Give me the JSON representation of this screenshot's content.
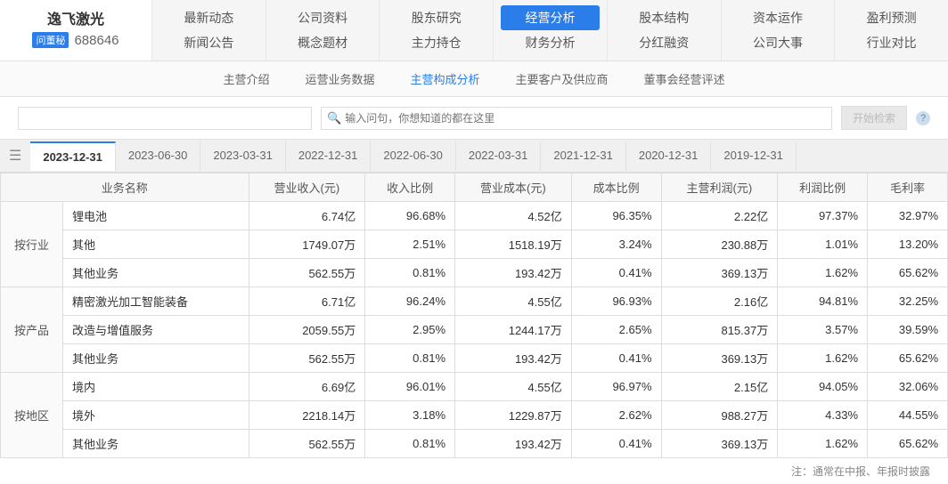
{
  "company": {
    "name": "逸飞激光",
    "badge": "问董秘",
    "code": "688646"
  },
  "topNav": [
    {
      "a": "最新动态",
      "b": "新闻公告"
    },
    {
      "a": "公司资料",
      "b": "概念题材"
    },
    {
      "a": "股东研究",
      "b": "主力持仓"
    },
    {
      "a": "经营分析",
      "b": "财务分析",
      "activeA": true
    },
    {
      "a": "股本结构",
      "b": "分红融资"
    },
    {
      "a": "资本运作",
      "b": "公司大事"
    },
    {
      "a": "盈利预测",
      "b": "行业对比"
    }
  ],
  "subNav": [
    {
      "label": "主营介绍"
    },
    {
      "label": "运营业务数据"
    },
    {
      "label": "主营构成分析",
      "active": true
    },
    {
      "label": "主要客户及供应商"
    },
    {
      "label": "董事会经营评述"
    }
  ],
  "search": {
    "placeholder": "输入问句，你想知道的都在这里",
    "btn": "开始检索"
  },
  "dateTabs": [
    "2023-12-31",
    "2023-06-30",
    "2023-03-31",
    "2022-12-31",
    "2022-06-30",
    "2022-03-31",
    "2021-12-31",
    "2020-12-31",
    "2019-12-31"
  ],
  "activeDateIdx": 0,
  "table": {
    "headers": [
      "业务名称",
      "营业收入(元)",
      "收入比例",
      "营业成本(元)",
      "成本比例",
      "主营利润(元)",
      "利润比例",
      "毛利率"
    ],
    "groups": [
      {
        "cat": "按行业",
        "rows": [
          {
            "name": "锂电池",
            "rev": "6.74亿",
            "revPct": "96.68%",
            "cost": "4.52亿",
            "costPct": "96.35%",
            "profit": "2.22亿",
            "profitPct": "97.37%",
            "margin": "32.97%"
          },
          {
            "name": "其他",
            "rev": "1749.07万",
            "revPct": "2.51%",
            "cost": "1518.19万",
            "costPct": "3.24%",
            "profit": "230.88万",
            "profitPct": "1.01%",
            "margin": "13.20%"
          },
          {
            "name": "其他业务",
            "rev": "562.55万",
            "revPct": "0.81%",
            "cost": "193.42万",
            "costPct": "0.41%",
            "profit": "369.13万",
            "profitPct": "1.62%",
            "margin": "65.62%"
          }
        ]
      },
      {
        "cat": "按产品",
        "rows": [
          {
            "name": "精密激光加工智能装备",
            "rev": "6.71亿",
            "revPct": "96.24%",
            "cost": "4.55亿",
            "costPct": "96.93%",
            "profit": "2.16亿",
            "profitPct": "94.81%",
            "margin": "32.25%"
          },
          {
            "name": "改造与增值服务",
            "rev": "2059.55万",
            "revPct": "2.95%",
            "cost": "1244.17万",
            "costPct": "2.65%",
            "profit": "815.37万",
            "profitPct": "3.57%",
            "margin": "39.59%"
          },
          {
            "name": "其他业务",
            "rev": "562.55万",
            "revPct": "0.81%",
            "cost": "193.42万",
            "costPct": "0.41%",
            "profit": "369.13万",
            "profitPct": "1.62%",
            "margin": "65.62%"
          }
        ]
      },
      {
        "cat": "按地区",
        "rows": [
          {
            "name": "境内",
            "rev": "6.69亿",
            "revPct": "96.01%",
            "cost": "4.55亿",
            "costPct": "96.97%",
            "profit": "2.15亿",
            "profitPct": "94.05%",
            "margin": "32.06%"
          },
          {
            "name": "境外",
            "rev": "2218.14万",
            "revPct": "3.18%",
            "cost": "1229.87万",
            "costPct": "2.62%",
            "profit": "988.27万",
            "profitPct": "4.33%",
            "margin": "44.55%"
          },
          {
            "name": "其他业务",
            "rev": "562.55万",
            "revPct": "0.81%",
            "cost": "193.42万",
            "costPct": "0.41%",
            "profit": "369.13万",
            "profitPct": "1.62%",
            "margin": "65.62%"
          }
        ]
      }
    ]
  },
  "footerNote": "注：通常在中报、年报时披露"
}
